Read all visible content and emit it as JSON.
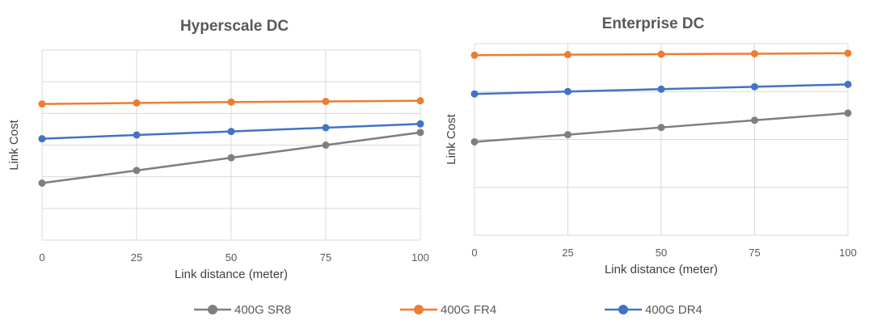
{
  "chart_data": [
    {
      "type": "line",
      "title": "Hyperscale DC",
      "xlabel": "Link distance (meter)",
      "ylabel": "Link Cost",
      "x": [
        0,
        25,
        50,
        75,
        100
      ],
      "xlim": [
        0,
        100
      ],
      "ylim": [
        0,
        6
      ],
      "y_tick_labels": "hidden",
      "grid": true,
      "series": [
        {
          "name": "400G SR8",
          "color": "#7f7f7f",
          "values": [
            1.8,
            2.2,
            2.6,
            3.0,
            3.4
          ]
        },
        {
          "name": "400G FR4",
          "color": "#ed7d31",
          "values": [
            4.3,
            4.33,
            4.36,
            4.38,
            4.4
          ]
        },
        {
          "name": "400G DR4",
          "color": "#4472c4",
          "values": [
            3.2,
            3.32,
            3.43,
            3.55,
            3.67
          ]
        }
      ]
    },
    {
      "type": "line",
      "title": "Enterprise DC",
      "xlabel": "Link distance (meter)",
      "ylabel": "Link Cost",
      "x": [
        0,
        25,
        50,
        75,
        100
      ],
      "xlim": [
        0,
        100
      ],
      "ylim": [
        0,
        4
      ],
      "y_tick_labels": "hidden",
      "grid": true,
      "series": [
        {
          "name": "400G SR8",
          "color": "#7f7f7f",
          "values": [
            1.95,
            2.1,
            2.25,
            2.4,
            2.55
          ]
        },
        {
          "name": "400G FR4",
          "color": "#ed7d31",
          "values": [
            3.76,
            3.77,
            3.78,
            3.79,
            3.8
          ]
        },
        {
          "name": "400G DR4",
          "color": "#4472c4",
          "values": [
            2.95,
            3.0,
            3.05,
            3.1,
            3.15
          ]
        }
      ]
    }
  ],
  "legend": {
    "position": "bottom",
    "items": [
      {
        "name": "400G SR8",
        "color": "#7f7f7f"
      },
      {
        "name": "400G FR4",
        "color": "#ed7d31"
      },
      {
        "name": "400G DR4",
        "color": "#4472c4"
      }
    ]
  }
}
